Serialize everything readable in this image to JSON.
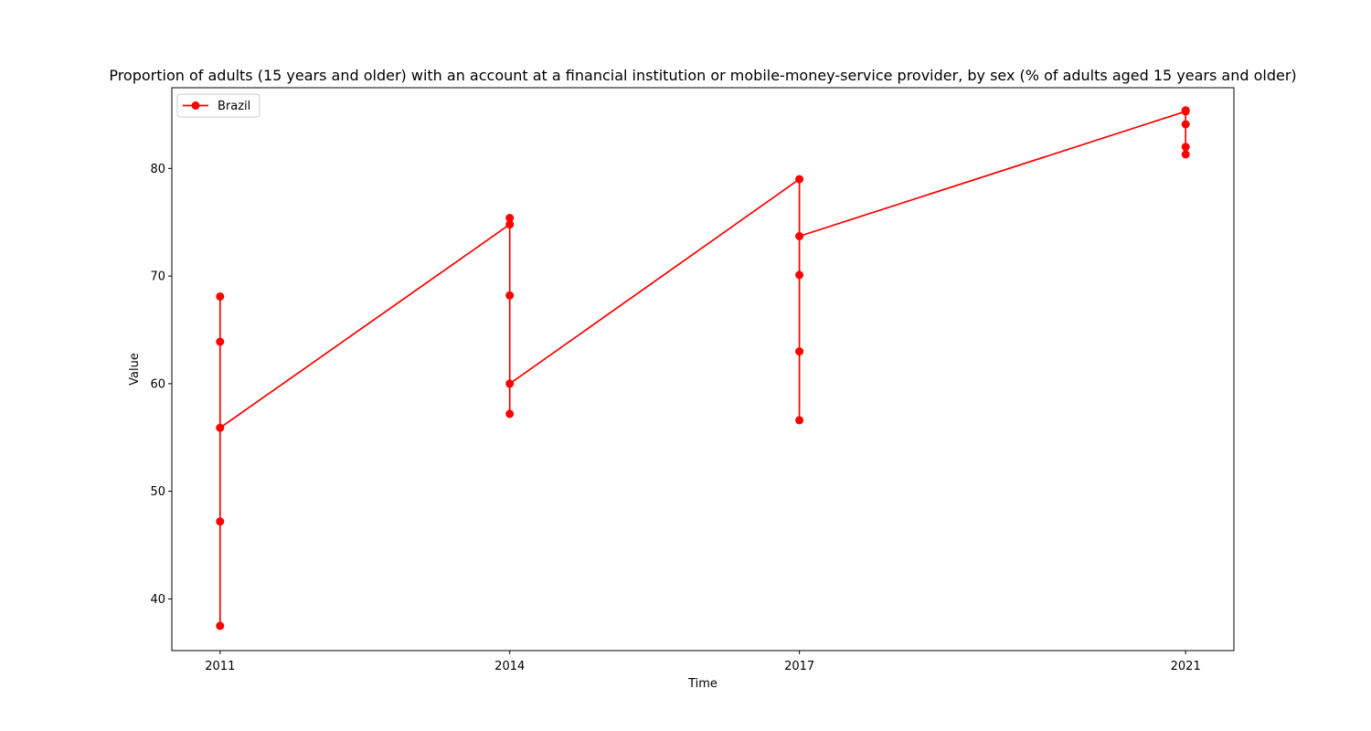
{
  "chart_data": {
    "type": "line",
    "title": "Proportion of adults (15 years and older) with an account at a financial institution or mobile-money-service provider, by sex (% of adults aged 15 years and older)",
    "xlabel": "Time",
    "ylabel": "Value",
    "x_ticks": [
      "2011",
      "2014",
      "2017",
      "2021"
    ],
    "y_ticks": [
      40,
      50,
      60,
      70,
      80
    ],
    "ylim": [
      35.2,
      87.5
    ],
    "grid": false,
    "legend_placement": "top-left",
    "series": [
      {
        "name": "Brazil",
        "color": "#ff0000",
        "marker": "circle",
        "points": [
          {
            "x": "2011",
            "y": 68.1
          },
          {
            "x": "2011",
            "y": 63.9
          },
          {
            "x": "2011",
            "y": 47.2
          },
          {
            "x": "2011",
            "y": 37.5
          },
          {
            "x": "2011",
            "y": 55.9
          },
          {
            "x": "2014",
            "y": 74.8
          },
          {
            "x": "2014",
            "y": 75.4
          },
          {
            "x": "2014",
            "y": 68.2
          },
          {
            "x": "2014",
            "y": 57.2
          },
          {
            "x": "2014",
            "y": 60.0
          },
          {
            "x": "2017",
            "y": 79.0
          },
          {
            "x": "2017",
            "y": 70.1
          },
          {
            "x": "2017",
            "y": 63.0
          },
          {
            "x": "2017",
            "y": 56.6
          },
          {
            "x": "2017",
            "y": 73.7
          },
          {
            "x": "2021",
            "y": 85.3
          },
          {
            "x": "2021",
            "y": 85.4
          },
          {
            "x": "2021",
            "y": 84.1
          },
          {
            "x": "2021",
            "y": 82.0
          },
          {
            "x": "2021",
            "y": 81.3
          }
        ]
      }
    ]
  }
}
